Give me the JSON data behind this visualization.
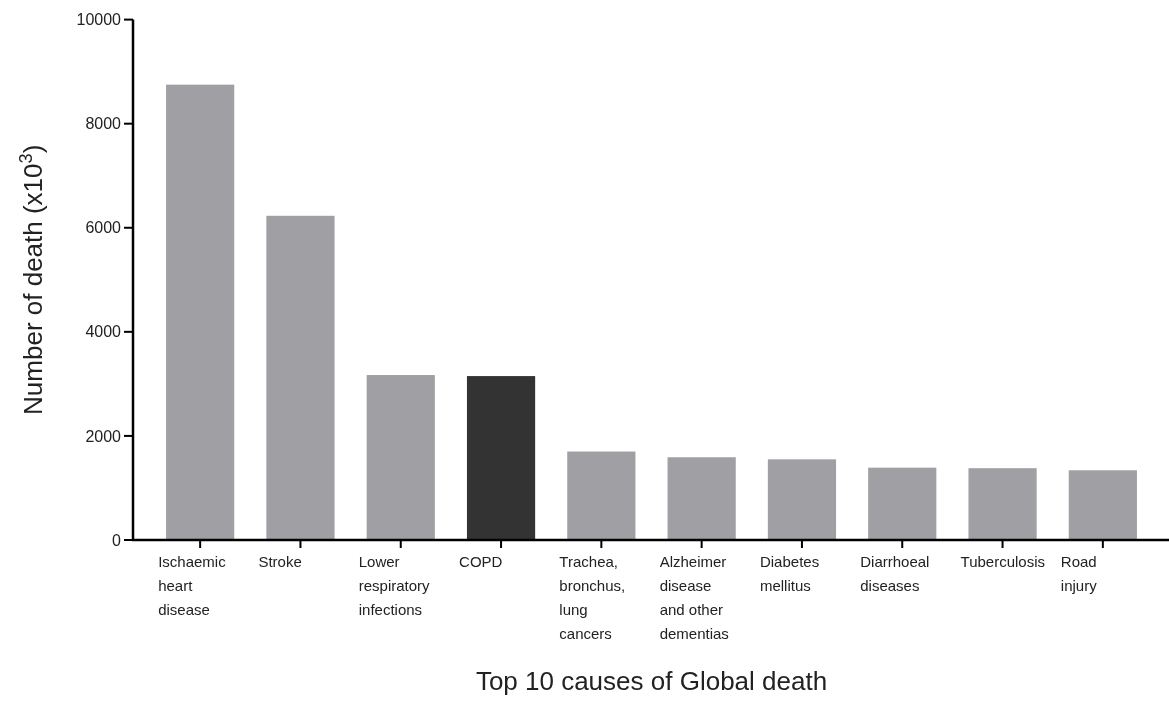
{
  "chart_data": {
    "type": "bar",
    "xlabel": "Top 10 causes of Global death",
    "ylabel": "Number of death (x10$^{3}$)",
    "categories": [
      "Ischaemic heart disease",
      "Stroke",
      "Lower respiratory infections",
      "COPD",
      "Trachea, bronchus, lung cancers",
      "Alzheimer disease and other dementias",
      "Diabetes mellitus",
      "Diarrhoeal diseases",
      "Tuberculosis",
      "Road injury"
    ],
    "values": [
      8750,
      6230,
      3170,
      3150,
      1700,
      1590,
      1550,
      1390,
      1380,
      1340
    ],
    "colors": [
      "#a09fa4",
      "#a09fa4",
      "#a09fa4",
      "#333333",
      "#a09fa4",
      "#a09fa4",
      "#a09fa4",
      "#a09fa4",
      "#a09fa4",
      "#a09fa4"
    ],
    "ylim": [
      0,
      10000
    ],
    "yticks": [
      0,
      2000,
      4000,
      6000,
      8000,
      10000
    ],
    "grid": false
  }
}
